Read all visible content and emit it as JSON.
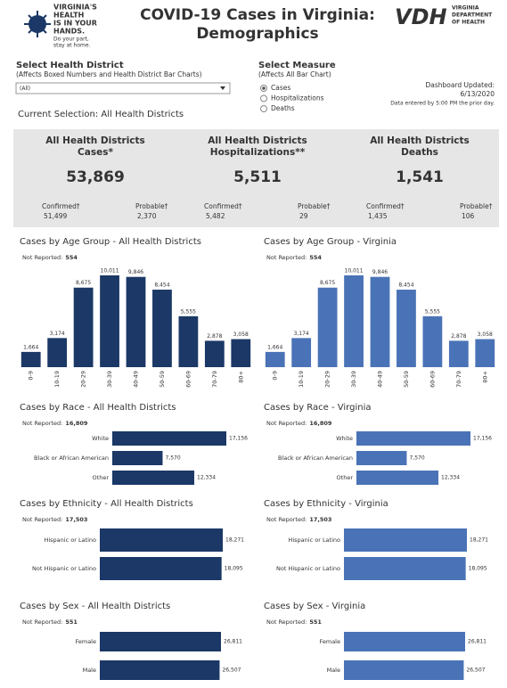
{
  "logo": {
    "lines": [
      "VIRGINIA'S",
      "HEALTH",
      "IS IN YOUR",
      "HANDS."
    ],
    "tagline": [
      "Do your part,",
      "stay at home."
    ]
  },
  "title": [
    "COVID-19 Cases in Virginia:",
    "Demographics"
  ],
  "vdh": {
    "mark": "VDH",
    "lines": [
      "VIRGINIA",
      "DEPARTMENT",
      "OF HEALTH"
    ]
  },
  "district_filter": {
    "label": "Select Health District",
    "note": "(Affects Boxed Numbers and Health District Bar Charts)",
    "selected": "(All)"
  },
  "measure": {
    "label": "Select Measure",
    "note": "(Affects All Bar Chart)",
    "options": [
      "Cases",
      "Hospitalizations",
      "Deaths"
    ],
    "selected": 0
  },
  "updated": {
    "label": "Dashboard Updated:",
    "date": "6/13/2020",
    "note": "Data entered by 5:00 PM the prior day."
  },
  "current_selection": "Current Selection: All Health Districts",
  "summary": [
    {
      "title": [
        "All Health Districts",
        "Cases*"
      ],
      "total": "53,869",
      "parts": [
        {
          "label": "Confirmed†",
          "value": "51,499"
        },
        {
          "label": "Probable†",
          "value": "2,370"
        }
      ]
    },
    {
      "title": [
        "All Health Districts",
        "Hospitalizations**"
      ],
      "total": "5,511",
      "parts": [
        {
          "label": "Confirmed†",
          "value": "5,482"
        },
        {
          "label": "Probable†",
          "value": "29"
        }
      ]
    },
    {
      "title": [
        "All Health Districts",
        "Deaths"
      ],
      "total": "1,541",
      "parts": [
        {
          "label": "Confirmed†",
          "value": "1,435"
        },
        {
          "label": "Probable†",
          "value": "106"
        }
      ]
    }
  ],
  "chart_data": [
    {
      "type": "bar",
      "title": "Cases by Age Group - All Health Districts",
      "not_reported_label": "Not Reported:",
      "not_reported": "554",
      "color": "#1b3866",
      "categories": [
        "0-9",
        "10-19",
        "20-29",
        "30-39",
        "40-49",
        "50-59",
        "60-69",
        "70-79",
        "80+"
      ],
      "values": [
        1664,
        3174,
        8675,
        10011,
        9846,
        8454,
        5555,
        2878,
        3058
      ],
      "value_labels": [
        "1,664",
        "3,174",
        "8,675",
        "10,011",
        "9,846",
        "8,454",
        "5,555",
        "2,878",
        "3,058"
      ]
    },
    {
      "type": "bar",
      "title": "Cases by Age Group - Virginia",
      "not_reported_label": "Not Reported:",
      "not_reported": "554",
      "color": "#4a73b7",
      "categories": [
        "0-9",
        "10-19",
        "20-29",
        "30-39",
        "40-49",
        "50-59",
        "60-69",
        "70-79",
        "80+"
      ],
      "values": [
        1664,
        3174,
        8675,
        10011,
        9846,
        8454,
        5555,
        2878,
        3058
      ],
      "value_labels": [
        "1,664",
        "3,174",
        "8,675",
        "10,011",
        "9,846",
        "8,454",
        "5,555",
        "2,878",
        "3,058"
      ]
    },
    {
      "type": "hbar",
      "title": "Cases by Race - All Health Districts",
      "not_reported_label": "Not Reported:",
      "not_reported": "16,809",
      "color": "#1b3866",
      "categories": [
        "White",
        "Black or African American",
        "Other"
      ],
      "values": [
        17156,
        7570,
        12334
      ],
      "value_labels": [
        "17,156",
        "7,570",
        "12,334"
      ]
    },
    {
      "type": "hbar",
      "title": "Cases by Race - Virginia",
      "not_reported_label": "Not Reported:",
      "not_reported": "16,809",
      "color": "#4a73b7",
      "categories": [
        "White",
        "Black or African American",
        "Other"
      ],
      "values": [
        17156,
        7570,
        12334
      ],
      "value_labels": [
        "17,156",
        "7,570",
        "12,334"
      ]
    },
    {
      "type": "hbar",
      "title": "Cases by Ethnicity - All Health Districts",
      "not_reported_label": "Not Reported:",
      "not_reported": "17,503",
      "color": "#1b3866",
      "categories": [
        "Hispanic or Latino",
        "Not Hispanic or Latino"
      ],
      "values": [
        18271,
        18095
      ],
      "value_labels": [
        "18,271",
        "18,095"
      ]
    },
    {
      "type": "hbar",
      "title": "Cases by Ethnicity - Virginia",
      "not_reported_label": "Not Reported:",
      "not_reported": "17,503",
      "color": "#4a73b7",
      "categories": [
        "Hispanic or Latino",
        "Not Hispanic or Latino"
      ],
      "values": [
        18271,
        18095
      ],
      "value_labels": [
        "18,271",
        "18,095"
      ]
    },
    {
      "type": "hbar",
      "title": "Cases by Sex - All Health Districts",
      "not_reported_label": "Not Reported:",
      "not_reported": "551",
      "color": "#1b3866",
      "categories": [
        "Female",
        "Male"
      ],
      "values": [
        26811,
        26507
      ],
      "value_labels": [
        "26,811",
        "26,507"
      ]
    },
    {
      "type": "hbar",
      "title": "Cases by Sex - Virginia",
      "not_reported_label": "Not Reported:",
      "not_reported": "551",
      "color": "#4a73b7",
      "categories": [
        "Female",
        "Male"
      ],
      "values": [
        26811,
        26507
      ],
      "value_labels": [
        "26,811",
        "26,507"
      ]
    }
  ]
}
